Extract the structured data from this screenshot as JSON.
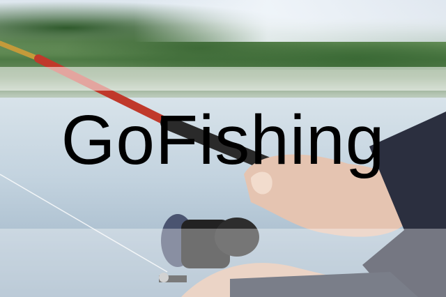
{
  "app": {
    "title": "GoFishing"
  },
  "colors": {
    "title_text": "#000000",
    "rod_red": "#c0392b",
    "overlay_band": "#ffffff"
  }
}
